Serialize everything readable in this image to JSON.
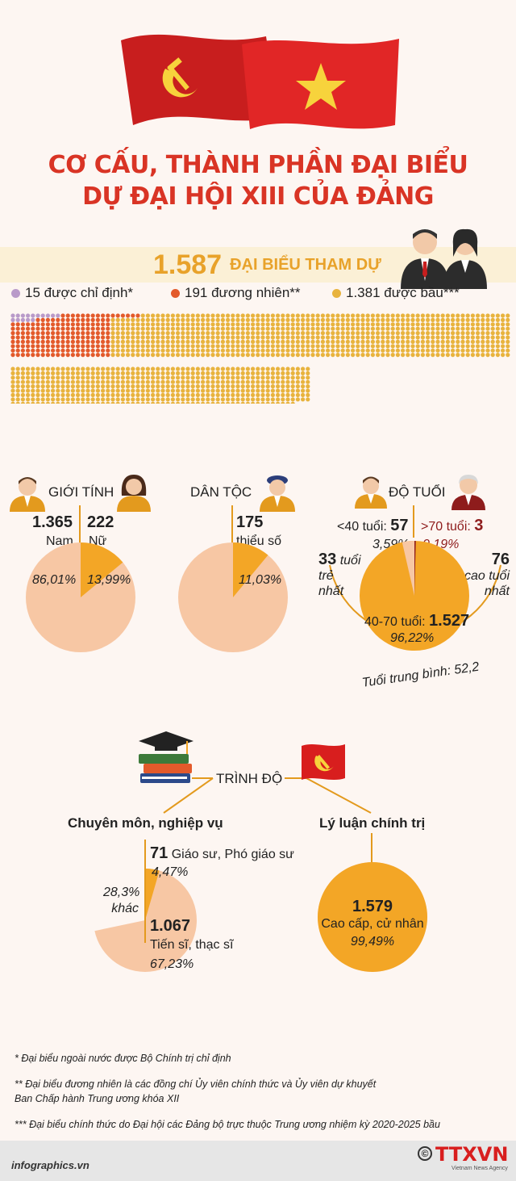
{
  "title_line1": "CƠ CẤU, THÀNH PHẦN ĐẠI BIỂU",
  "title_line2": "DỰ ĐẠI HỘI XIII CỦA ĐẢNG",
  "total": {
    "number": "1.587",
    "label": "ĐẠI BIỂU THAM DỰ"
  },
  "composition": {
    "appointed": {
      "text": "15 được chỉ định*",
      "count": 15,
      "color": "#b99ac9"
    },
    "ex_officio": {
      "text": "191 đương nhiên**",
      "count": 191,
      "color": "#e35a2b"
    },
    "elected": {
      "text": "1.381 được bầu***",
      "count": 1381,
      "color": "#e8b33e"
    }
  },
  "gender": {
    "title": "GIỚI TÍNH",
    "male_count": "1.365",
    "male_label": "Nam",
    "female_count": "222",
    "female_label": "Nữ",
    "male_pct": "86,01%",
    "female_pct": "13,99%"
  },
  "ethnic": {
    "title": "DÂN TỘC",
    "minority_count": "175",
    "minority_label": "thiểu số",
    "minority_pct": "11,03%"
  },
  "age": {
    "title": "ĐỘ TUỔI",
    "under40_label": "<40 tuổi:",
    "under40_count": "57",
    "under40_pct": "3,59%",
    "over70_label": ">70 tuổi:",
    "over70_count": "3",
    "over70_pct": "0,19%",
    "youngest_num": "33",
    "youngest_l1": "tuổi",
    "youngest_l2": "trẻ",
    "youngest_l3": "nhất",
    "oldest_num": "76",
    "oldest_l1": "cao tuổi",
    "oldest_l2": "nhất",
    "mid_label": "40-70 tuổi:",
    "mid_count": "1.527",
    "mid_pct": "96,22%",
    "average": "Tuổi trung bình: 52,2"
  },
  "education": {
    "title": "TRÌNH ĐỘ",
    "professional": {
      "title": "Chuyên môn, nghiệp vụ",
      "prof_count": "71",
      "prof_label": "Giáo sư, Phó giáo sư",
      "prof_pct": "4,47%",
      "other_pct": "28,3%",
      "other_label": "khác",
      "doctor_count": "1.067",
      "doctor_label": "Tiến sĩ, thạc sĩ",
      "doctor_pct": "67,23%"
    },
    "political": {
      "title": "Lý luận chính trị",
      "count": "1.579",
      "label": "Cao cấp, cử nhân",
      "pct": "99,49%"
    }
  },
  "notes": {
    "n1": "* Đại biểu ngoài nước được Bộ Chính trị chỉ định",
    "n2a": "** Đại biểu đương nhiên là các đồng chí Ủy viên chính thức và Ủy viên dự khuyết",
    "n2b": "Ban Chấp hành Trung ương khóa XII",
    "n3": "*** Đại biểu chính thức do Đại hội các Đảng bộ trực thuộc Trung ương nhiệm kỳ 2020-2025 bầu"
  },
  "footer": {
    "site": "infographics.vn",
    "agency": "TTXVN",
    "agency_sub": "Vietnam News Agency"
  },
  "chart_data": [
    {
      "type": "pie",
      "title": "GIỚI TÍNH",
      "categories": [
        "Nam",
        "Nữ"
      ],
      "values": [
        86.01,
        13.99
      ]
    },
    {
      "type": "pie",
      "title": "DÂN TỘC",
      "categories": [
        "thiểu số"
      ],
      "values": [
        11.03
      ]
    },
    {
      "type": "pie",
      "title": "ĐỘ TUỔI",
      "categories": [
        "<40 tuổi:",
        ">70 tuổi:",
        "40-70 tuổi:"
      ],
      "values": [
        3.59,
        0.19,
        96.22
      ]
    },
    {
      "type": "pie",
      "title": "Chuyên môn, nghiệp vụ",
      "categories": [
        "Giáo sư, Phó giáo sư",
        "Tiến sĩ, thạc sĩ",
        "khác"
      ],
      "values": [
        4.47,
        67.23,
        28.3
      ]
    },
    {
      "type": "pie",
      "title": "Lý luận chính trị",
      "categories": [
        "Cao cấp, cử nhân"
      ],
      "values": [
        99.49
      ]
    }
  ]
}
